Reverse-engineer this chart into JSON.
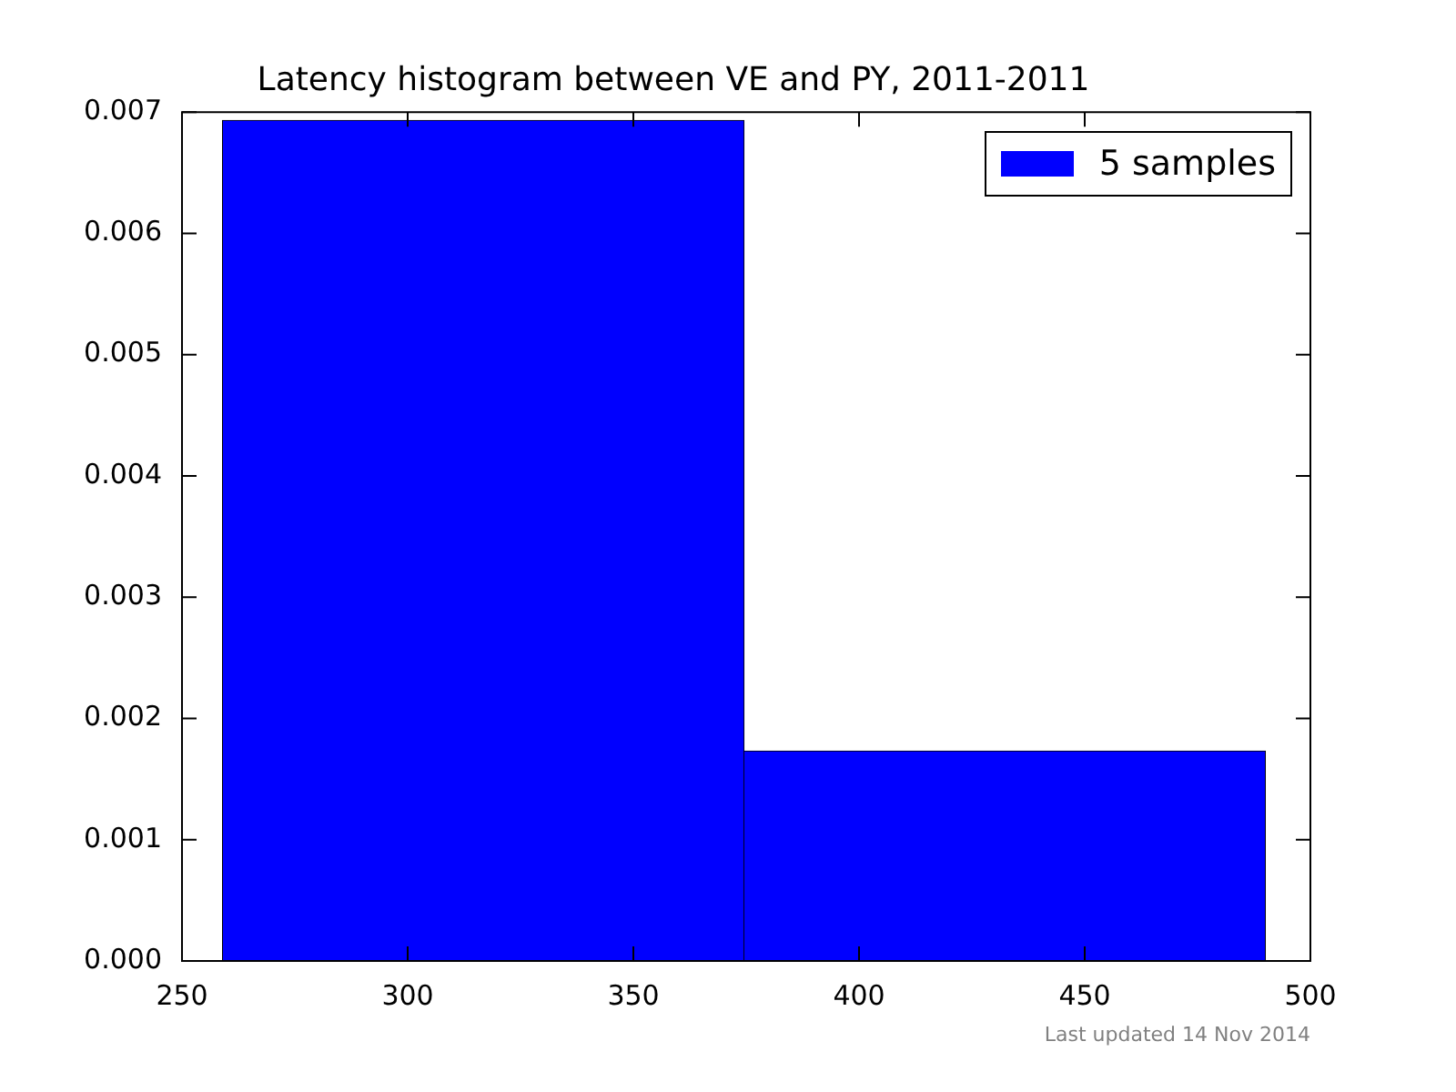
{
  "chart_data": {
    "type": "histogram",
    "title": "Latency histogram between VE and PY, 2011-2011",
    "bins": [
      259,
      374.5,
      490
    ],
    "series": [
      {
        "name": "5 samples",
        "color": "#0000ff",
        "values": [
          0.00693,
          0.00173
        ]
      }
    ],
    "xlim": [
      250,
      500
    ],
    "xticks": [
      250,
      300,
      350,
      400,
      450,
      500
    ],
    "ylim": [
      0,
      0.007
    ],
    "yticks": [
      {
        "value": 0,
        "label": "0.000"
      },
      {
        "value": 0.001,
        "label": "0.001"
      },
      {
        "value": 0.002,
        "label": "0.002"
      },
      {
        "value": 0.003,
        "label": "0.003"
      },
      {
        "value": 0.004,
        "label": "0.004"
      },
      {
        "value": 0.005,
        "label": "0.005"
      },
      {
        "value": 0.006,
        "label": "0.006"
      },
      {
        "value": 0.007,
        "label": "0.007"
      }
    ],
    "legend": "top right",
    "annotations": [
      "Last updated 14 Nov 2014"
    ]
  }
}
